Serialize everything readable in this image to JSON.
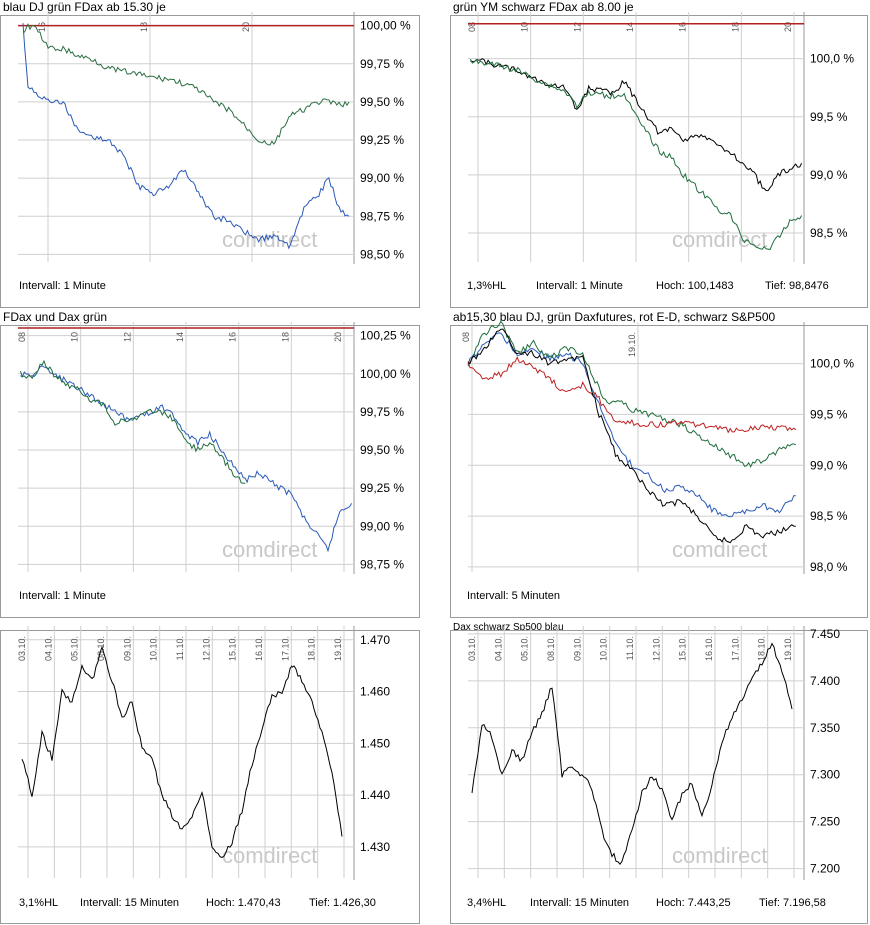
{
  "chart_data": [
    {
      "type": "line",
      "title": "blau DJ grün FDax ab 15.30 je",
      "x_ticks": [
        "16",
        "18",
        "20"
      ],
      "y_ticks": [
        "100,00 %",
        "99,75 %",
        "99,50 %",
        "99,25 %",
        "99,00 %",
        "98,75 %",
        "98,50 %"
      ],
      "ylim": [
        98.45,
        100.05
      ],
      "reference_line": 100.0,
      "series": [
        {
          "color": "#2a5ab8",
          "x": [
            15.5,
            15.6,
            15.8,
            16.0,
            16.3,
            16.6,
            16.9,
            17.2,
            17.5,
            17.8,
            18.1,
            18.4,
            18.7,
            19.0,
            19.3,
            19.6,
            19.9,
            20.2,
            20.5,
            20.8,
            21.1,
            21.4,
            21.6,
            21.8,
            22.0
          ],
          "y": [
            100.0,
            99.6,
            99.55,
            99.5,
            99.5,
            99.3,
            99.27,
            99.25,
            99.15,
            98.95,
            98.9,
            98.95,
            99.05,
            98.9,
            98.75,
            98.72,
            98.65,
            98.6,
            98.62,
            98.55,
            98.8,
            98.9,
            99.0,
            98.8,
            98.75
          ]
        },
        {
          "color": "#2a6e42",
          "x": [
            15.5,
            15.6,
            15.8,
            16.0,
            16.3,
            16.6,
            16.9,
            17.2,
            17.5,
            17.8,
            18.1,
            18.4,
            18.7,
            19.0,
            19.3,
            19.6,
            19.9,
            20.2,
            20.5,
            20.8,
            21.1,
            21.4,
            21.6,
            21.8,
            22.0
          ],
          "y": [
            99.95,
            100.0,
            99.97,
            99.85,
            99.85,
            99.8,
            99.78,
            99.72,
            99.7,
            99.68,
            99.66,
            99.65,
            99.62,
            99.58,
            99.5,
            99.45,
            99.35,
            99.25,
            99.22,
            99.4,
            99.45,
            99.5,
            99.5,
            99.48,
            99.5
          ]
        }
      ],
      "footer": {
        "interval": "Intervall: 1 Minute"
      }
    },
    {
      "type": "line",
      "title": "grün YM schwarz FDax ab 8.00 je",
      "x_ticks": [
        "08",
        "10",
        "12",
        "14",
        "16",
        "18",
        "20"
      ],
      "y_ticks": [
        "100,0 %",
        "99,5 %",
        "99,0 %",
        "98,5 %"
      ],
      "ylim": [
        98.25,
        100.35
      ],
      "reference_line": 100.3,
      "series": [
        {
          "color": "#000000",
          "x": [
            8,
            9,
            10,
            11,
            12,
            12.5,
            13,
            14,
            14.5,
            15,
            15.5,
            16,
            16.5,
            17,
            17.5,
            18,
            18.5,
            19,
            19.5,
            20,
            20.5,
            21,
            21.5,
            22
          ],
          "y": [
            100.0,
            99.95,
            99.9,
            99.8,
            99.75,
            99.55,
            99.75,
            99.7,
            99.8,
            99.65,
            99.5,
            99.35,
            99.4,
            99.3,
            99.35,
            99.3,
            99.25,
            99.2,
            99.1,
            99.0,
            98.85,
            99.0,
            99.05,
            99.1
          ]
        },
        {
          "color": "#1f6e3c",
          "x": [
            8,
            9,
            10,
            11,
            12,
            12.5,
            13,
            14,
            14.5,
            15,
            15.5,
            16,
            16.5,
            17,
            17.5,
            18,
            18.5,
            19,
            19.5,
            20,
            20.5,
            21,
            21.5,
            22
          ],
          "y": [
            99.98,
            99.95,
            99.9,
            99.8,
            99.72,
            99.6,
            99.7,
            99.68,
            99.7,
            99.5,
            99.35,
            99.2,
            99.15,
            99.0,
            98.9,
            98.8,
            98.7,
            98.65,
            98.45,
            98.4,
            98.35,
            98.45,
            98.6,
            98.65
          ]
        }
      ],
      "footer": {
        "range": "1,3%HL",
        "interval": "Intervall: 1 Minute",
        "high": "Hoch: 100,1483",
        "low": "Tief: 98,8476"
      }
    },
    {
      "type": "line",
      "title": "FDax und Dax grün",
      "x_ticks": [
        "08",
        "10",
        "12",
        "14",
        "16",
        "18",
        "20"
      ],
      "y_ticks": [
        "100,25 %",
        "100,00 %",
        "99,75 %",
        "99,50 %",
        "99,25 %",
        "99,00 %",
        "98,75 %"
      ],
      "ylim": [
        98.7,
        100.3
      ],
      "reference_line": 100.3,
      "series": [
        {
          "color": "#2a5ab8",
          "x": [
            8,
            8.5,
            9,
            9.5,
            10,
            10.5,
            11,
            11.5,
            12,
            12.5,
            13,
            13.5,
            14,
            14.5,
            15,
            15.5,
            16,
            16.5,
            17,
            17.5,
            18,
            18.5,
            19,
            19.5,
            20,
            20.5,
            21,
            21.5,
            22
          ],
          "y": [
            100.0,
            99.98,
            100.05,
            99.98,
            99.95,
            99.9,
            99.85,
            99.8,
            99.75,
            99.7,
            99.72,
            99.75,
            99.78,
            99.72,
            99.6,
            99.55,
            99.6,
            99.5,
            99.4,
            99.3,
            99.35,
            99.3,
            99.25,
            99.2,
            99.05,
            98.95,
            98.85,
            99.1,
            99.15
          ]
        },
        {
          "color": "#1f6e3c",
          "x": [
            8,
            8.5,
            9,
            9.5,
            10,
            10.5,
            11,
            11.5,
            12,
            12.5,
            13,
            13.5,
            14,
            14.5,
            15,
            15.5,
            16,
            16.5,
            17,
            17.5
          ],
          "y": [
            100.0,
            99.98,
            100.08,
            99.98,
            99.92,
            99.9,
            99.82,
            99.8,
            99.68,
            99.7,
            99.72,
            99.75,
            99.75,
            99.7,
            99.55,
            99.5,
            99.55,
            99.45,
            99.35,
            99.28
          ]
        }
      ],
      "footer": {
        "interval": "Intervall: 1 Minute"
      }
    },
    {
      "type": "line",
      "title": "ab15,30 blau DJ, grün Daxfutures, rot E-D, schwarz S&P500",
      "x_ticks": [
        "08",
        "19.10."
      ],
      "y_ticks": [
        "100,0 %",
        "99,5 %",
        "99,0 %",
        "98,5 %",
        "98,0 %"
      ],
      "ylim": [
        97.95,
        100.35
      ],
      "series": [
        {
          "color": "#2a5ab8",
          "x": [
            0,
            2,
            4,
            6,
            8,
            10,
            12,
            14,
            16,
            17,
            18,
            20,
            22,
            24,
            26,
            28,
            30,
            32,
            34,
            36,
            38,
            40
          ],
          "y": [
            100.0,
            100.2,
            100.3,
            100.1,
            100.15,
            100.05,
            100.1,
            100.0,
            99.6,
            99.4,
            99.2,
            99.0,
            98.9,
            98.75,
            98.8,
            98.7,
            98.55,
            98.5,
            98.55,
            98.6,
            98.55,
            98.7
          ]
        },
        {
          "color": "#1f6e3c",
          "x": [
            0,
            2,
            4,
            6,
            8,
            10,
            12,
            14,
            16,
            17,
            18,
            20,
            22,
            24,
            26,
            28,
            30,
            32,
            34,
            36,
            38,
            40
          ],
          "y": [
            100.0,
            100.3,
            100.4,
            100.1,
            100.2,
            100.05,
            100.15,
            100.1,
            99.75,
            99.6,
            99.65,
            99.55,
            99.5,
            99.45,
            99.4,
            99.3,
            99.2,
            99.1,
            99.0,
            99.05,
            99.15,
            99.2
          ]
        },
        {
          "color": "#c02020",
          "x": [
            0,
            2,
            4,
            6,
            8,
            10,
            12,
            14,
            16,
            17,
            18,
            20,
            22,
            24,
            26,
            28,
            30,
            32,
            34,
            36,
            38,
            40
          ],
          "y": [
            100.0,
            99.85,
            99.9,
            100.05,
            99.95,
            99.85,
            99.7,
            99.8,
            99.65,
            99.5,
            99.45,
            99.42,
            99.4,
            99.4,
            99.42,
            99.4,
            99.38,
            99.35,
            99.36,
            99.38,
            99.37,
            99.35
          ]
        },
        {
          "color": "#000000",
          "x": [
            0,
            2,
            4,
            6,
            8,
            10,
            12,
            14,
            16,
            17,
            18,
            20,
            22,
            24,
            26,
            28,
            30,
            32,
            34,
            36,
            38,
            40
          ],
          "y": [
            100.0,
            100.15,
            100.35,
            100.1,
            100.1,
            100.0,
            100.05,
            100.05,
            99.5,
            99.35,
            99.1,
            98.95,
            98.75,
            98.6,
            98.65,
            98.5,
            98.3,
            98.25,
            98.4,
            98.3,
            98.35,
            98.4
          ]
        }
      ],
      "footer": {
        "interval": "Intervall: 5 Minuten"
      }
    },
    {
      "type": "line",
      "title": "",
      "x_ticks": [
        "03.10.",
        "04.10.",
        "05.10.",
        "08.10.",
        "09.10.",
        "10.10.",
        "11.10.",
        "12.10.",
        "15.10.",
        "16.10.",
        "17.10.",
        "18.10.",
        "19.10."
      ],
      "y_ticks": [
        "1.470",
        "1.460",
        "1.450",
        "1.440",
        "1.430"
      ],
      "ylim": [
        1424,
        1471.5
      ],
      "series": [
        {
          "color": "#000000",
          "x": [
            0,
            0.5,
            1,
            1.5,
            2,
            2.5,
            3,
            3.5,
            4,
            4.5,
            5,
            5.5,
            6,
            6.5,
            7,
            7.5,
            8,
            8.5,
            9,
            9.5,
            10,
            10.5,
            11,
            11.5,
            12,
            12.5,
            13,
            13.5
          ],
          "y": [
            1447,
            1440,
            1452,
            1447,
            1460,
            1458,
            1465,
            1462,
            1469,
            1462,
            1455,
            1458,
            1449,
            1447,
            1440,
            1436,
            1433,
            1436,
            1441,
            1430,
            1428,
            1431,
            1437,
            1446,
            1453,
            1459,
            1460,
            1465
          ]
        },
        {
          "color": "#000000",
          "x": [
            13.5,
            14,
            14.5,
            15,
            15.5,
            16
          ],
          "y": [
            1465,
            1462,
            1458,
            1452,
            1444,
            1432
          ]
        }
      ],
      "footer": {
        "range": "3,1%HL",
        "interval": "Intervall: 15 Minuten",
        "high": "Hoch:  1.470,43",
        "low": "Tief:  1.426,30"
      }
    },
    {
      "type": "line",
      "title": "Dax schwarz Sp500 blau",
      "x_ticks": [
        "03.10.",
        "04.10.",
        "05.10.",
        "08.10.",
        "09.10.",
        "10.10.",
        "11.10.",
        "12.10.",
        "15.10.",
        "16.10.",
        "17.10.",
        "18.10.",
        "19.10."
      ],
      "y_ticks": [
        "7.450",
        "7.400",
        "7.350",
        "7.300",
        "7.250",
        "7.200"
      ],
      "ylim": [
        7190,
        7452
      ],
      "series": [
        {
          "color": "#000000",
          "x": [
            0,
            0.5,
            1,
            1.5,
            2,
            2.5,
            3,
            3.5,
            4,
            4.5,
            5,
            5.5,
            6,
            6.5,
            7,
            7.5,
            8,
            8.5,
            9,
            9.5,
            10,
            10.5,
            11,
            11.5,
            12,
            12.5,
            13,
            13.5,
            14,
            14.5,
            15,
            15.5,
            16
          ],
          "y": [
            7280,
            7355,
            7340,
            7300,
            7325,
            7315,
            7345,
            7365,
            7395,
            7300,
            7310,
            7300,
            7285,
            7240,
            7215,
            7205,
            7240,
            7280,
            7300,
            7285,
            7250,
            7280,
            7290,
            7255,
            7290,
            7335,
            7360,
            7380,
            7400,
            7420,
            7440,
            7410,
            7370
          ]
        }
      ],
      "footer": {
        "range": "3,4%HL",
        "interval": "Intervall: 15 Minuten",
        "high": "Hoch:  7.443,25",
        "low": "Tief:  7.196,58"
      }
    }
  ],
  "watermark": "comdirect"
}
